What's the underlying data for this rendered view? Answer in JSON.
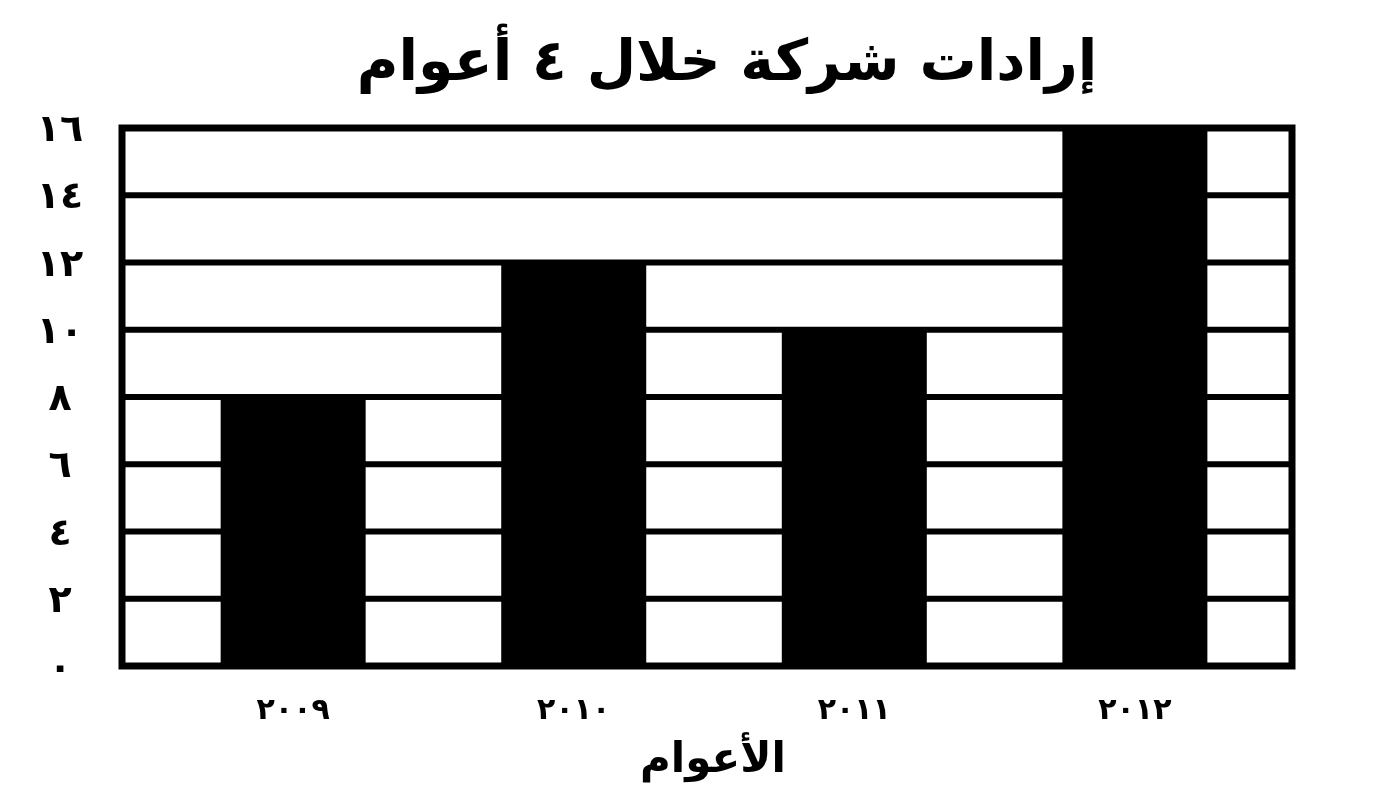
{
  "chart_data": {
    "type": "bar",
    "title": "إرادات شركة خلال ٤ أعوام",
    "xlabel": "الأعوام",
    "categories": [
      "٢٠٠٩",
      "٢٠١٠",
      "٢٠١١",
      "٢٠١٢"
    ],
    "values": [
      8,
      12,
      10,
      16
    ],
    "color": "#000000",
    "ylim": [
      0,
      16
    ],
    "yticks": [
      {
        "value": 0,
        "label": "٠"
      },
      {
        "value": 2,
        "label": "٢"
      },
      {
        "value": 4,
        "label": "٤"
      },
      {
        "value": 6,
        "label": "٦"
      },
      {
        "value": 8,
        "label": "٨"
      },
      {
        "value": 10,
        "label": "١٠"
      },
      {
        "value": 12,
        "label": "١٢"
      },
      {
        "value": 14,
        "label": "١٤"
      },
      {
        "value": 16,
        "label": "١٦"
      }
    ],
    "grid": "y"
  }
}
